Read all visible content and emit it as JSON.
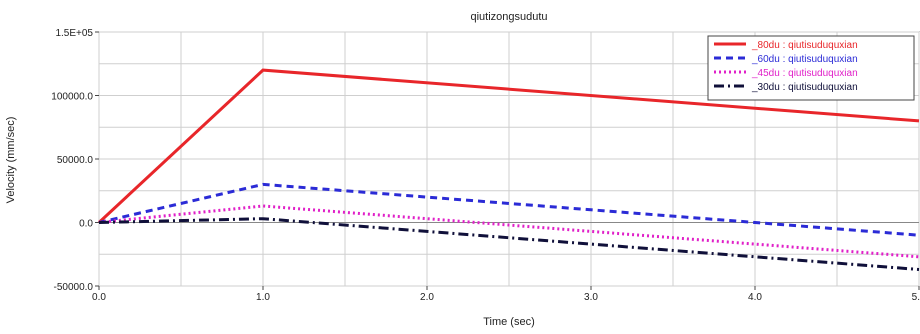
{
  "chart_data": {
    "type": "line",
    "title": "qiutizongsudutu",
    "xlabel": "Time (sec)",
    "ylabel": "Velocity (mm/sec)",
    "xlim": [
      0,
      5
    ],
    "ylim": [
      -50000,
      150000
    ],
    "x_ticks": [
      0,
      1,
      2,
      3,
      4,
      5
    ],
    "x_tick_labels": [
      "0.0",
      "1.0",
      "2.0",
      "3.0",
      "4.0",
      "5."
    ],
    "y_ticks": [
      -50000,
      0,
      50000,
      100000,
      150000
    ],
    "y_tick_labels": [
      "-50000.0",
      "0.0",
      "50000.0",
      "100000.0",
      "1.5E+05"
    ],
    "grid": true,
    "legend_position": "top-right",
    "series": [
      {
        "name": "_80du",
        "legend_suffix": ": qiutisuduquxian",
        "color": "#e8262a",
        "dash": "solid",
        "x": [
          0,
          1,
          5
        ],
        "y": [
          0,
          120000,
          80000
        ]
      },
      {
        "name": "_60du",
        "legend_suffix": ": qiutisuduquxian",
        "color": "#2b2bd6",
        "dash": "dashed",
        "x": [
          0,
          1,
          5
        ],
        "y": [
          0,
          30000,
          -10000
        ]
      },
      {
        "name": "_45du",
        "legend_suffix": ": qiutisuduquxian",
        "color": "#e020c8",
        "dash": "dotted",
        "x": [
          0,
          1,
          5
        ],
        "y": [
          0,
          13000,
          -27000
        ]
      },
      {
        "name": "_30du",
        "legend_suffix": ": qiutisuduquxian",
        "color": "#10103a",
        "dash": "dashdot",
        "x": [
          0,
          1,
          5
        ],
        "y": [
          0,
          3000,
          -37000
        ]
      }
    ]
  }
}
